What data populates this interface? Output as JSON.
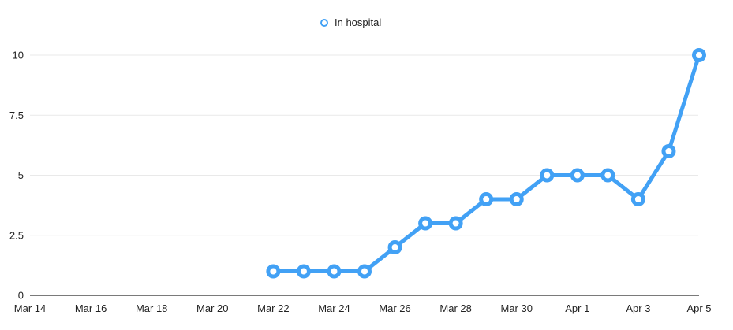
{
  "colors": {
    "series_blue": "#42A1F5",
    "grid_line": "#E9E9E9",
    "axis_line": "#2B2B2B",
    "label_text": "#222222",
    "background": "#FFFFFF",
    "marker_fill": "#FFFFFF"
  },
  "chart_data": {
    "type": "line",
    "title": "",
    "legend_position": "top-center",
    "grid": "horizontal",
    "x_axis": {
      "tick_labels": [
        "Mar 14",
        "Mar 16",
        "Mar 18",
        "Mar 20",
        "Mar 22",
        "Mar 24",
        "Mar 26",
        "Mar 28",
        "Mar 30",
        "Apr 1",
        "Apr 3",
        "Apr 5"
      ],
      "tick_day_offsets": [
        0,
        2,
        4,
        6,
        8,
        10,
        12,
        14,
        16,
        18,
        20,
        22
      ],
      "range_day_offsets": [
        0,
        22
      ]
    },
    "y_axis": {
      "tick_labels": [
        "0",
        "2.5",
        "5",
        "7.5",
        "10"
      ],
      "tick_values": [
        0,
        2.5,
        5,
        7.5,
        10
      ],
      "range": [
        0,
        10
      ]
    },
    "series": [
      {
        "name": "In hospital",
        "color": "#42A1F5",
        "marker": "open-circle",
        "points": [
          {
            "date": "Mar 22",
            "day_offset": 8,
            "value": 1
          },
          {
            "date": "Mar 23",
            "day_offset": 9,
            "value": 1
          },
          {
            "date": "Mar 24",
            "day_offset": 10,
            "value": 1
          },
          {
            "date": "Mar 25",
            "day_offset": 11,
            "value": 1
          },
          {
            "date": "Mar 26",
            "day_offset": 12,
            "value": 2
          },
          {
            "date": "Mar 27",
            "day_offset": 13,
            "value": 3
          },
          {
            "date": "Mar 28",
            "day_offset": 14,
            "value": 3
          },
          {
            "date": "Mar 29",
            "day_offset": 15,
            "value": 4
          },
          {
            "date": "Mar 30",
            "day_offset": 16,
            "value": 4
          },
          {
            "date": "Mar 31",
            "day_offset": 17,
            "value": 5
          },
          {
            "date": "Apr 1",
            "day_offset": 18,
            "value": 5
          },
          {
            "date": "Apr 2",
            "day_offset": 19,
            "value": 5
          },
          {
            "date": "Apr 3",
            "day_offset": 20,
            "value": 4
          },
          {
            "date": "Apr 4",
            "day_offset": 21,
            "value": 6
          },
          {
            "date": "Apr 5",
            "day_offset": 22,
            "value": 10
          }
        ]
      }
    ]
  }
}
